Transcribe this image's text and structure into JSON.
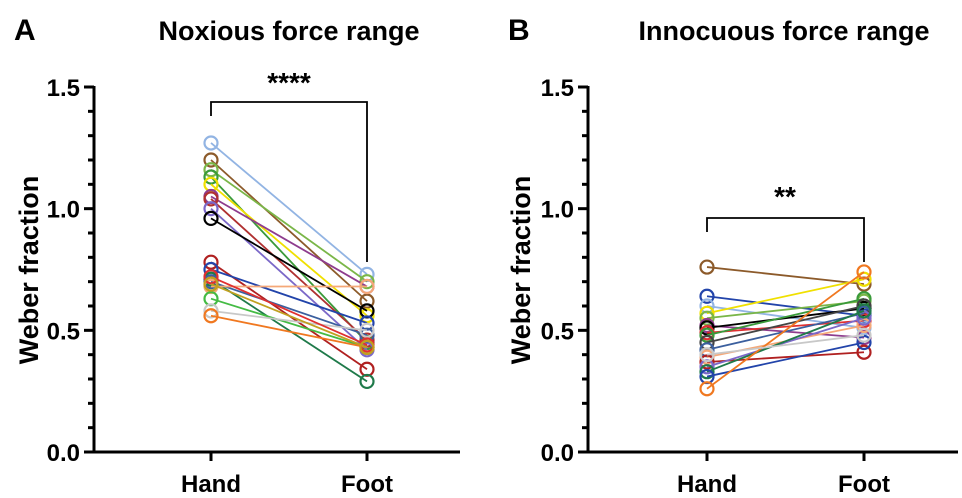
{
  "chart_data": [
    {
      "type": "line",
      "panel_label": "A",
      "title": "Noxious force range",
      "ylabel": "Weber fraction",
      "categories": [
        "Hand",
        "Foot"
      ],
      "ylim": [
        0,
        1.5
      ],
      "yticks": [
        "0.0",
        "0.5",
        "1.0",
        "1.5"
      ],
      "significance": "****",
      "series": [
        {
          "values": [
            1.27,
            0.73
          ],
          "color": "#92b4e3"
        },
        {
          "values": [
            1.2,
            0.62
          ],
          "color": "#8c5a2a"
        },
        {
          "values": [
            1.16,
            0.7
          ],
          "color": "#7ab648"
        },
        {
          "values": [
            1.13,
            0.45
          ],
          "color": "#3a9a3a"
        },
        {
          "values": [
            1.1,
            0.56
          ],
          "color": "#f0e000"
        },
        {
          "values": [
            1.05,
            0.68
          ],
          "color": "#8e3c8e"
        },
        {
          "values": [
            1.04,
            0.46
          ],
          "color": "#b03030"
        },
        {
          "values": [
            1.0,
            0.42
          ],
          "color": "#7b68c8"
        },
        {
          "values": [
            0.96,
            0.58
          ],
          "color": "#000000"
        },
        {
          "values": [
            0.78,
            0.34
          ],
          "color": "#b02020"
        },
        {
          "values": [
            0.75,
            0.53
          ],
          "color": "#2244aa"
        },
        {
          "values": [
            0.71,
            0.29
          ],
          "color": "#1f7a4a"
        },
        {
          "values": [
            0.7,
            0.48
          ],
          "color": "#3b5f9e"
        },
        {
          "values": [
            0.68,
            0.68
          ],
          "color": "#f5a878"
        },
        {
          "values": [
            0.63,
            0.43
          ],
          "color": "#44bb44"
        },
        {
          "values": [
            0.58,
            0.5
          ],
          "color": "#c8c8c8"
        },
        {
          "values": [
            0.56,
            0.43
          ],
          "color": "#f07820"
        },
        {
          "values": [
            0.72,
            0.44
          ],
          "color": "#e03030"
        },
        {
          "values": [
            0.69,
            0.43
          ],
          "color": "#c0a020"
        }
      ]
    },
    {
      "type": "line",
      "panel_label": "B",
      "title": "Innocuous force range",
      "ylabel": "Weber fraction",
      "categories": [
        "Hand",
        "Foot"
      ],
      "ylim": [
        0,
        1.5
      ],
      "yticks": [
        "0.0",
        "0.5",
        "1.0",
        "1.5"
      ],
      "significance": "**",
      "series": [
        {
          "values": [
            0.76,
            0.69
          ],
          "color": "#8c5a2a"
        },
        {
          "values": [
            0.64,
            0.56
          ],
          "color": "#2244aa"
        },
        {
          "values": [
            0.6,
            0.51
          ],
          "color": "#92b4e3"
        },
        {
          "values": [
            0.57,
            0.71
          ],
          "color": "#f0e000"
        },
        {
          "values": [
            0.55,
            0.62
          ],
          "color": "#7ab648"
        },
        {
          "values": [
            0.52,
            0.47
          ],
          "color": "#8e3c8e"
        },
        {
          "values": [
            0.51,
            0.59
          ],
          "color": "#000000"
        },
        {
          "values": [
            0.49,
            0.54
          ],
          "color": "#e03030"
        },
        {
          "values": [
            0.48,
            0.63
          ],
          "color": "#3a9a3a"
        },
        {
          "values": [
            0.45,
            0.6
          ],
          "color": "#444444"
        },
        {
          "values": [
            0.42,
            0.57
          ],
          "color": "#3b5f9e"
        },
        {
          "values": [
            0.39,
            0.52
          ],
          "color": "#f5a878"
        },
        {
          "values": [
            0.37,
            0.41
          ],
          "color": "#b02020"
        },
        {
          "values": [
            0.35,
            0.55
          ],
          "color": "#7b68c8"
        },
        {
          "values": [
            0.33,
            0.58
          ],
          "color": "#1f7a4a"
        },
        {
          "values": [
            0.31,
            0.45
          ],
          "color": "#2244aa"
        },
        {
          "values": [
            0.26,
            0.74
          ],
          "color": "#f07820"
        },
        {
          "values": [
            0.4,
            0.48
          ],
          "color": "#c8c8c8"
        }
      ]
    }
  ]
}
